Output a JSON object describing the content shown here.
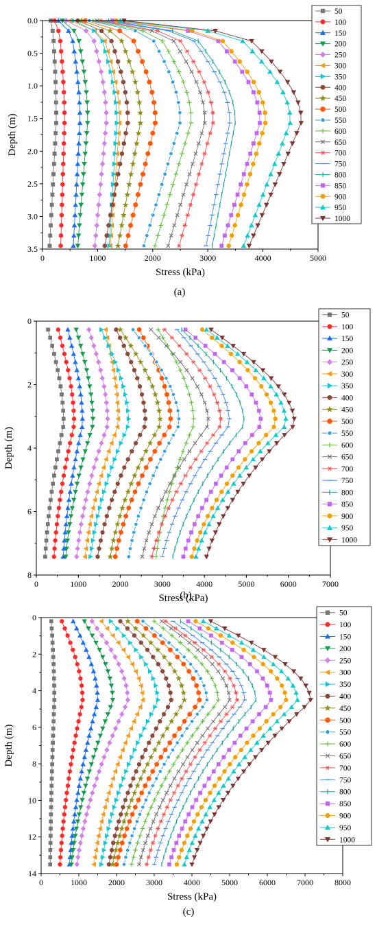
{
  "series_labels": [
    "50",
    "100",
    "150",
    "200",
    "250",
    "300",
    "350",
    "400",
    "450",
    "500",
    "550",
    "600",
    "650",
    "700",
    "750",
    "800",
    "850",
    "900",
    "950",
    "1000"
  ],
  "series_colors": [
    "#767676",
    "#ff2a2a",
    "#1a6ef0",
    "#159a4e",
    "#d27fe6",
    "#f39a1f",
    "#13c7d4",
    "#8a4b3c",
    "#8f8f1c",
    "#ff5a0a",
    "#2f9fdd",
    "#5cbf35",
    "#707070",
    "#f25050",
    "#3a87ee",
    "#16a39a",
    "#c266f0",
    "#f2a000",
    "#11c9cb",
    "#7d3636"
  ],
  "series_markers": [
    "square",
    "circle",
    "triangle-up",
    "triangle-down",
    "diamond",
    "triangle-left",
    "triangle-right",
    "circle",
    "star",
    "pentagon",
    "ball",
    "plus",
    "cross",
    "asterisk",
    "dash",
    "vbar",
    "square",
    "circle",
    "triangle-up",
    "triangle-down"
  ],
  "chart_data": [
    {
      "panel": "(a)",
      "type": "line",
      "xlabel": "Stress (kPa)",
      "ylabel": "Depth (m)",
      "xlim": [
        0,
        5000
      ],
      "ylim": [
        0,
        3.5
      ],
      "y_inverted": true,
      "xticks": [
        0,
        1000,
        2000,
        3000,
        4000,
        5000
      ],
      "yticks": [
        "0.0",
        "0.5",
        "1.0",
        "1.5",
        "2.0",
        "2.5",
        "3.0",
        "3.5"
      ],
      "legend_position": "right",
      "depth_range": [
        0.0,
        3.45
      ],
      "surface_stress": 150,
      "series_stress_max": [
        250,
        400,
        680,
        820,
        1160,
        1400,
        1350,
        1550,
        1780,
        2050,
        2500,
        2700,
        2950,
        3100,
        3400,
        3500,
        3950,
        4050,
        4500,
        4700
      ],
      "series_stress_bottom": [
        130,
        330,
        560,
        640,
        950,
        1230,
        1210,
        1130,
        1370,
        1510,
        1840,
        2040,
        2280,
        2480,
        2970,
        3080,
        3250,
        3380,
        3650,
        3750
      ]
    },
    {
      "panel": "(b)",
      "type": "line",
      "xlabel": "Stress (kPa)",
      "ylabel": "Depth (m)",
      "xlim": [
        0,
        7000
      ],
      "ylim": [
        0,
        9
      ],
      "y_inverted": true,
      "xticks": [
        0,
        1000,
        2000,
        3000,
        4000,
        5000,
        6000,
        7000
      ],
      "yticks": [
        "0",
        "2",
        "4",
        "6",
        "8"
      ],
      "legend_position": "right",
      "depth_range": [
        0.3,
        8.35
      ],
      "series_stress_top": [
        280,
        520,
        750,
        950,
        1250,
        1650,
        1550,
        1900,
        2000,
        2450,
        2300,
        2900,
        2730,
        3050,
        3350,
        3460,
        3550,
        3950,
        4050,
        4160
      ],
      "series_stress_max": [
        650,
        900,
        1100,
        1350,
        1700,
        1950,
        2200,
        2600,
        2950,
        3200,
        3400,
        3750,
        4100,
        4400,
        4600,
        4950,
        5350,
        5700,
        5950,
        6150
      ],
      "series_stress_bottom": [
        210,
        420,
        640,
        700,
        960,
        1160,
        1290,
        1460,
        1760,
        1880,
        2200,
        2850,
        2520,
        2750,
        3000,
        3250,
        3500,
        3700,
        3800,
        4050
      ]
    },
    {
      "panel": "(c)",
      "type": "line",
      "xlabel": "Stress (kPa)",
      "ylabel": "Depth (m)",
      "xlim": [
        0,
        8000
      ],
      "ylim": [
        0,
        14
      ],
      "y_inverted": true,
      "xticks": [
        0,
        1000,
        2000,
        3000,
        4000,
        5000,
        6000,
        7000,
        8000
      ],
      "yticks": [
        "0",
        "2",
        "4",
        "6",
        "8",
        "10",
        "12",
        "14"
      ],
      "legend_position": "right",
      "depth_range": [
        0.2,
        13.5
      ],
      "series_stress_top": [
        270,
        550,
        850,
        1150,
        1350,
        1600,
        1850,
        2100,
        2300,
        2550,
        2700,
        3000,
        3200,
        3300,
        3500,
        3700,
        3900,
        4100,
        4300,
        4500
      ],
      "series_stress_max": [
        350,
        1100,
        1500,
        1900,
        2300,
        2700,
        3100,
        3450,
        3800,
        4200,
        4400,
        4700,
        5000,
        5200,
        5400,
        5700,
        6100,
        6500,
        6800,
        7150
      ],
      "series_stress_bottom": [
        240,
        500,
        750,
        800,
        950,
        1400,
        1600,
        1800,
        1900,
        2000,
        2200,
        2400,
        2600,
        2800,
        3000,
        3200,
        3400,
        3600,
        3800,
        4000
      ]
    }
  ],
  "captions": [
    "(a)",
    "(b)",
    "(c)"
  ]
}
